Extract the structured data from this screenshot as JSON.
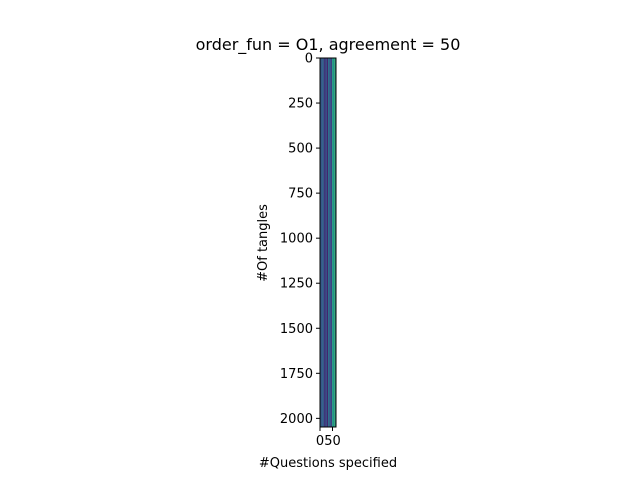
{
  "chart_data": {
    "type": "heatmap",
    "title": "order_fun = O1, agreement = 50",
    "xlabel": "#Questions specified",
    "ylabel": "#Of tangles",
    "xlim": [
      0,
      64
    ],
    "ylim": [
      2048,
      0
    ],
    "xticks": [
      0,
      50
    ],
    "xtick_labels": [
      "0",
      "50"
    ],
    "yticks": [
      0,
      250,
      500,
      750,
      1000,
      1250,
      1500,
      1750,
      2000
    ],
    "ytick_labels": [
      "0",
      "250",
      "500",
      "750",
      "1000",
      "1250",
      "1500",
      "1750",
      "2000"
    ],
    "colormap": "viridis",
    "value_range": [
      0,
      1
    ],
    "column_values": [
      0.3,
      0.27,
      0.33,
      0.27,
      0.17,
      0.2,
      0.23,
      0.12,
      0.37,
      0.3,
      0.25,
      0.2,
      0.55,
      0.5,
      0.6,
      0.52
    ],
    "colors": {
      "frame": "#000000",
      "background": "#ffffff"
    }
  }
}
